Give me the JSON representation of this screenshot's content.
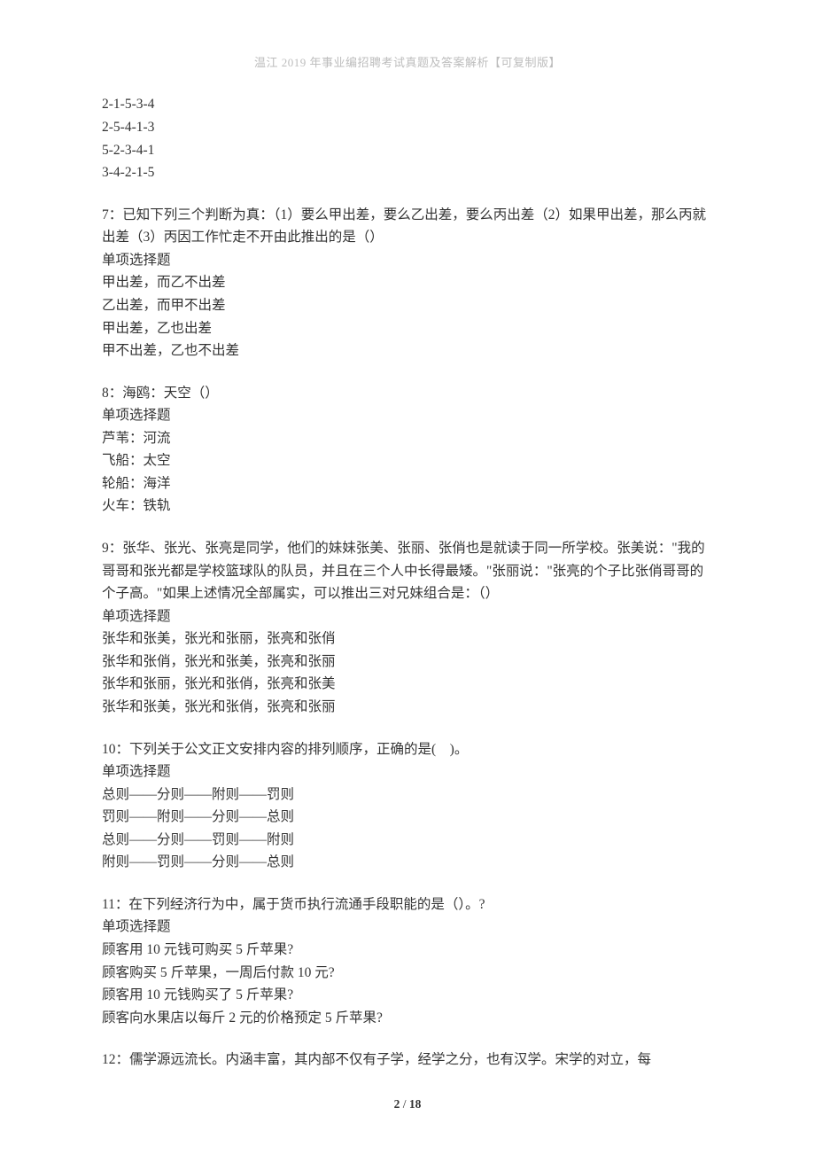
{
  "header": "温江 2019 年事业编招聘考试真题及答案解析【可复制版】",
  "blocks": [
    {
      "lines": [
        "2-1-5-3-4",
        "2-5-4-1-3",
        "5-2-3-4-1",
        "3-4-2-1-5"
      ]
    },
    {
      "lines": [
        "7：已知下列三个判断为真：（1）要么甲出差，要么乙出差，要么丙出差（2）如果甲出差，那么丙就出差（3）丙因工作忙走不开由此推出的是（）",
        "单项选择题",
        "甲出差，而乙不出差",
        "乙出差，而甲不出差",
        "甲出差，乙也出差",
        "甲不出差，乙也不出差"
      ]
    },
    {
      "lines": [
        "8：海鸥：天空（）",
        "单项选择题",
        "芦苇：河流",
        "飞船：太空",
        "轮船：海洋",
        "火车：铁轨"
      ]
    },
    {
      "lines": [
        "9：张华、张光、张亮是同学，他们的妹妹张美、张丽、张俏也是就读于同一所学校。张美说：\"我的哥哥和张光都是学校篮球队的队员，并且在三个人中长得最矮。\"张丽说：\"张亮的个子比张俏哥哥的个子高。\"如果上述情况全部属实，可以推出三对兄妹组合是：（）",
        "单项选择题",
        "张华和张美，张光和张丽，张亮和张俏",
        "张华和张俏，张光和张美，张亮和张丽",
        "张华和张丽，张光和张俏，张亮和张美",
        "张华和张美，张光和张俏，张亮和张丽"
      ]
    },
    {
      "lines": [
        "10：下列关于公文正文安排内容的排列顺序，正确的是(　)。",
        "单项选择题",
        "总则——分则——附则——罚则",
        "罚则——附则——分则——总则",
        "总则——分则——罚则——附则",
        "附则——罚则——分则——总则"
      ]
    },
    {
      "lines": [
        "11：在下列经济行为中，属于货币执行流通手段职能的是（）。?",
        "单项选择题",
        "顾客用 10 元钱可购买 5 斤苹果?",
        "顾客购买 5 斤苹果，一周后付款 10 元?",
        "顾客用 10 元钱购买了 5 斤苹果?",
        "顾客向水果店以每斤 2 元的价格预定 5 斤苹果?"
      ]
    },
    {
      "lines": [
        "12：儒学源远流长。内涵丰富，其内部不仅有子学，经学之分，也有汉学。宋学的对立，每"
      ]
    }
  ],
  "footer": {
    "current": "2",
    "sep": " / ",
    "total": "18"
  }
}
